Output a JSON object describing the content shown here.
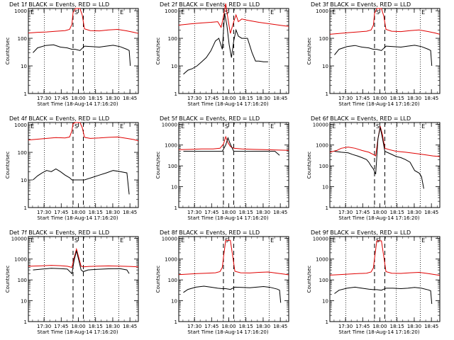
{
  "figure": {
    "background": "#ffffff",
    "events_color": "#000000",
    "lld_color": "#e00000",
    "x_ticks": [
      "17:30",
      "17:45",
      "18:00",
      "18:15",
      "18:30",
      "18:45"
    ],
    "x_label": "Start Time (18-Aug-14 17:16:20)",
    "y_label": "Counts/sec",
    "markers": [
      "E",
      "S",
      "E"
    ]
  },
  "chart_data": [
    {
      "type": "line",
      "title": "Det 1f BLACK = Events, RED = LLD",
      "x_unit": "minutes after 17:16:20",
      "xlim": [
        0,
        96
      ],
      "ylim": [
        1,
        1200
      ],
      "y_scale": "log",
      "y_ticks": [
        "1",
        "10",
        "100",
        "1000"
      ],
      "dotted_x": [
        14,
        58,
        79
      ],
      "dashed_x": [
        39,
        48
      ],
      "series": [
        {
          "name": "Events",
          "color": "#000000",
          "x": [
            4,
            8,
            15,
            22,
            28,
            34,
            38,
            41,
            45,
            49,
            55,
            62,
            68,
            74,
            80,
            86,
            88,
            89
          ],
          "y": [
            30,
            45,
            55,
            58,
            48,
            45,
            40,
            40,
            36,
            52,
            50,
            48,
            52,
            56,
            50,
            40,
            36,
            10
          ]
        },
        {
          "name": "LLD",
          "color": "#e00000",
          "x": [
            0,
            8,
            16,
            24,
            32,
            36,
            38,
            39,
            41,
            45,
            47,
            49,
            54,
            62,
            70,
            78,
            86,
            92,
            96
          ],
          "y": [
            155,
            165,
            170,
            180,
            190,
            210,
            320,
            850,
            1200,
            1200,
            700,
            220,
            190,
            185,
            200,
            210,
            185,
            165,
            150
          ]
        }
      ]
    },
    {
      "type": "line",
      "title": "Det 2f BLACK = Events, RED = LLD",
      "x_unit": "minutes after 17:16:20",
      "xlim": [
        0,
        96
      ],
      "ylim": [
        1,
        1200
      ],
      "y_scale": "log",
      "y_ticks": [
        "1",
        "10",
        "100",
        "1000"
      ],
      "dotted_x": [
        14,
        58,
        79
      ],
      "dashed_x": [
        39,
        48
      ],
      "series": [
        {
          "name": "Events",
          "color": "#000000",
          "x": [
            4,
            8,
            12,
            16,
            20,
            24,
            28,
            32,
            35,
            38,
            40,
            42,
            44,
            46,
            48,
            50,
            52,
            55,
            60,
            64,
            67,
            70,
            74,
            78
          ],
          "y": [
            5,
            7,
            8,
            10,
            14,
            20,
            35,
            80,
            100,
            40,
            800,
            300,
            60,
            20,
            80,
            200,
            120,
            100,
            100,
            30,
            15,
            15,
            14,
            14
          ]
        },
        {
          "name": "LLD",
          "color": "#e00000",
          "x": [
            0,
            10,
            20,
            28,
            34,
            37,
            39,
            41,
            43,
            45,
            48,
            50,
            52,
            55,
            60,
            70,
            80,
            90,
            96
          ],
          "y": [
            300,
            330,
            360,
            380,
            400,
            250,
            600,
            1800,
            500,
            150,
            400,
            700,
            400,
            500,
            450,
            380,
            330,
            290,
            270
          ]
        }
      ]
    },
    {
      "type": "line",
      "title": "Det 3f BLACK = Events, RED = LLD",
      "x_unit": "minutes after 17:16:20",
      "xlim": [
        0,
        96
      ],
      "ylim": [
        1,
        1200
      ],
      "y_scale": "log",
      "y_ticks": [
        "1",
        "10",
        "100",
        "1000"
      ],
      "dotted_x": [
        14,
        58,
        79
      ],
      "dashed_x": [
        39,
        48
      ],
      "series": [
        {
          "name": "Events",
          "color": "#000000",
          "x": [
            4,
            8,
            15,
            22,
            28,
            34,
            38,
            41,
            45,
            49,
            55,
            62,
            68,
            74,
            80,
            86,
            88,
            89
          ],
          "y": [
            25,
            40,
            50,
            55,
            48,
            45,
            40,
            40,
            36,
            52,
            50,
            48,
            52,
            56,
            50,
            40,
            36,
            10
          ]
        },
        {
          "name": "LLD",
          "color": "#e00000",
          "x": [
            0,
            8,
            16,
            24,
            32,
            36,
            38,
            39,
            41,
            45,
            47,
            49,
            54,
            62,
            70,
            78,
            86,
            92,
            96
          ],
          "y": [
            140,
            150,
            160,
            170,
            180,
            200,
            300,
            800,
            1200,
            1200,
            650,
            210,
            180,
            175,
            190,
            200,
            175,
            155,
            140
          ]
        }
      ]
    },
    {
      "type": "line",
      "title": "Det 4f BLACK = Events, RED = LLD",
      "x_unit": "minutes after 17:16:20",
      "xlim": [
        0,
        96
      ],
      "ylim": [
        1,
        1200
      ],
      "y_scale": "log",
      "y_ticks": [
        "1",
        "10",
        "100",
        "1000"
      ],
      "dotted_x": [
        14,
        58,
        79
      ],
      "dashed_x": [
        39,
        48
      ],
      "series": [
        {
          "name": "Events",
          "color": "#000000",
          "x": [
            4,
            8,
            12,
            16,
            20,
            24,
            28,
            32,
            36,
            38,
            45,
            49,
            55,
            62,
            68,
            74,
            80,
            86,
            88
          ],
          "y": [
            10,
            14,
            18,
            22,
            20,
            25,
            20,
            15,
            12,
            10,
            10,
            10,
            12,
            15,
            18,
            22,
            20,
            18,
            3
          ]
        },
        {
          "name": "LLD",
          "color": "#e00000",
          "x": [
            0,
            8,
            16,
            24,
            32,
            36,
            38,
            39,
            41,
            45,
            47,
            49,
            54,
            62,
            70,
            78,
            86,
            92,
            96
          ],
          "y": [
            280,
            300,
            320,
            340,
            330,
            360,
            600,
            1100,
            1200,
            1200,
            800,
            350,
            320,
            330,
            350,
            360,
            320,
            290,
            260
          ]
        }
      ]
    },
    {
      "type": "line",
      "title": "Det 5f BLACK = Events, RED = LLD",
      "x_unit": "minutes after 17:16:20",
      "xlim": [
        0,
        96
      ],
      "ylim": [
        1,
        12000
      ],
      "y_scale": "log",
      "y_ticks": [
        "1",
        "10",
        "100",
        "1000",
        "10000"
      ],
      "dotted_x": [
        14,
        58,
        79
      ],
      "dashed_x": [
        39,
        48
      ],
      "series": [
        {
          "name": "Events",
          "color": "#000000",
          "x": [
            4,
            10,
            20,
            30,
            38,
            41,
            43,
            45,
            48,
            55,
            65,
            75,
            84,
            88
          ],
          "y": [
            500,
            500,
            500,
            500,
            500,
            1000,
            2200,
            1100,
            500,
            500,
            500,
            500,
            500,
            320
          ]
        },
        {
          "name": "LLD",
          "color": "#e00000",
          "x": [
            0,
            10,
            20,
            30,
            36,
            39,
            41,
            43,
            45,
            48,
            55,
            65,
            75,
            85,
            96
          ],
          "y": [
            600,
            620,
            650,
            650,
            700,
            1100,
            2500,
            1300,
            850,
            700,
            650,
            620,
            600,
            580,
            560
          ]
        }
      ]
    },
    {
      "type": "line",
      "title": "Det 6f BLACK = Events, RED = LLD",
      "x_unit": "minutes after 17:16:20",
      "xlim": [
        0,
        96
      ],
      "ylim": [
        1,
        12000
      ],
      "y_scale": "log",
      "y_ticks": [
        "1",
        "10",
        "100",
        "1000",
        "10000"
      ],
      "dotted_x": [
        14,
        58,
        79
      ],
      "dashed_x": [
        39,
        48
      ],
      "series": [
        {
          "name": "Events",
          "color": "#000000",
          "x": [
            4,
            10,
            16,
            20,
            24,
            28,
            32,
            34,
            36,
            38,
            40,
            42,
            44,
            46,
            48,
            52,
            58,
            62,
            66,
            70,
            74,
            78,
            80,
            82
          ],
          "y": [
            500,
            450,
            420,
            350,
            300,
            250,
            200,
            150,
            100,
            70,
            40,
            2000,
            7000,
            2000,
            500,
            400,
            280,
            250,
            200,
            150,
            60,
            45,
            30,
            8
          ]
        },
        {
          "name": "LLD",
          "color": "#e00000",
          "x": [
            0,
            6,
            10,
            16,
            22,
            28,
            34,
            38,
            40,
            42,
            44,
            46,
            48,
            52,
            58,
            66,
            74,
            82,
            90,
            96
          ],
          "y": [
            450,
            550,
            700,
            800,
            700,
            550,
            450,
            350,
            300,
            2000,
            8000,
            3000,
            700,
            600,
            500,
            450,
            400,
            350,
            300,
            280
          ]
        }
      ]
    },
    {
      "type": "line",
      "title": "Det 7f BLACK = Events, RED = LLD",
      "x_unit": "minutes after 17:16:20",
      "xlim": [
        0,
        96
      ],
      "ylim": [
        1,
        12000
      ],
      "y_scale": "log",
      "y_ticks": [
        "1",
        "10",
        "100",
        "1000",
        "10000"
      ],
      "dotted_x": [
        14,
        58,
        79
      ],
      "dashed_x": [
        39,
        48
      ],
      "series": [
        {
          "name": "Events",
          "color": "#000000",
          "x": [
            4,
            12,
            20,
            28,
            34,
            38,
            40,
            42,
            44,
            46,
            48,
            52,
            60,
            70,
            80,
            86,
            88
          ],
          "y": [
            300,
            330,
            360,
            350,
            330,
            200,
            900,
            2500,
            900,
            300,
            250,
            300,
            320,
            340,
            350,
            300,
            200
          ]
        },
        {
          "name": "LLD",
          "color": "#e00000",
          "x": [
            0,
            10,
            20,
            28,
            34,
            38,
            40,
            42,
            44,
            46,
            48,
            52,
            60,
            70,
            80,
            90,
            96
          ],
          "y": [
            450,
            470,
            500,
            480,
            450,
            400,
            1200,
            3000,
            1200,
            450,
            420,
            440,
            460,
            470,
            460,
            440,
            420
          ]
        }
      ]
    },
    {
      "type": "line",
      "title": "Det 8f BLACK = Events, RED = LLD",
      "x_unit": "minutes after 17:16:20",
      "xlim": [
        0,
        96
      ],
      "ylim": [
        1,
        12000
      ],
      "y_scale": "log",
      "y_ticks": [
        "1",
        "10",
        "100",
        "1000",
        "10000"
      ],
      "dotted_x": [
        14,
        58,
        79
      ],
      "dashed_x": [
        39,
        48
      ],
      "series": [
        {
          "name": "Events",
          "color": "#000000",
          "x": [
            4,
            8,
            15,
            22,
            28,
            34,
            38,
            41,
            45,
            49,
            55,
            62,
            68,
            74,
            80,
            86,
            88,
            89
          ],
          "y": [
            25,
            35,
            45,
            50,
            45,
            40,
            38,
            38,
            35,
            45,
            44,
            42,
            45,
            48,
            44,
            36,
            32,
            8
          ]
        },
        {
          "name": "LLD",
          "color": "#e00000",
          "x": [
            0,
            8,
            16,
            24,
            32,
            36,
            38,
            39,
            41,
            45,
            47,
            49,
            54,
            62,
            70,
            78,
            86,
            92,
            96
          ],
          "y": [
            180,
            190,
            200,
            210,
            220,
            250,
            400,
            1200,
            8000,
            8000,
            1500,
            260,
            220,
            215,
            230,
            240,
            210,
            190,
            175
          ]
        }
      ]
    },
    {
      "type": "line",
      "title": "Det 9f BLACK = Events, RED = LLD",
      "x_unit": "minutes after 17:16:20",
      "xlim": [
        0,
        96
      ],
      "ylim": [
        1,
        12000
      ],
      "y_scale": "log",
      "y_ticks": [
        "1",
        "10",
        "100",
        "1000",
        "10000"
      ],
      "dotted_x": [
        14,
        58,
        79
      ],
      "dashed_x": [
        39,
        48
      ],
      "series": [
        {
          "name": "Events",
          "color": "#000000",
          "x": [
            4,
            8,
            15,
            22,
            28,
            34,
            38,
            41,
            45,
            49,
            55,
            62,
            68,
            74,
            80,
            86,
            88,
            89
          ],
          "y": [
            22,
            32,
            40,
            45,
            40,
            36,
            34,
            34,
            32,
            40,
            40,
            38,
            40,
            44,
            40,
            33,
            30,
            7
          ]
        },
        {
          "name": "LLD",
          "color": "#e00000",
          "x": [
            0,
            8,
            16,
            24,
            32,
            36,
            38,
            39,
            41,
            45,
            47,
            49,
            54,
            62,
            70,
            78,
            86,
            92,
            96
          ],
          "y": [
            170,
            180,
            190,
            200,
            210,
            240,
            380,
            1100,
            7500,
            7500,
            1400,
            250,
            210,
            205,
            220,
            230,
            200,
            180,
            165
          ]
        }
      ]
    }
  ]
}
